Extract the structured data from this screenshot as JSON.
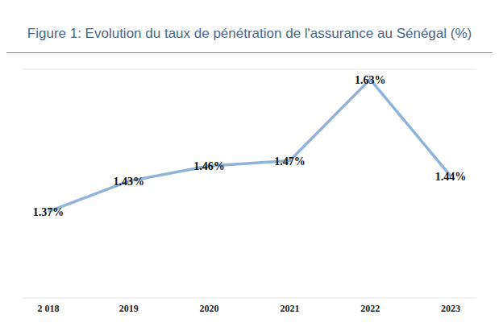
{
  "chart_data": {
    "type": "line",
    "title": "Figure 1: Evolution du taux de pénétration de l'assurance au Sénégal (%)",
    "categories": [
      "2 018",
      "2019",
      "2020",
      "2021",
      "2022",
      "2023"
    ],
    "values": [
      1.37,
      1.43,
      1.46,
      1.47,
      1.63,
      1.44
    ],
    "value_labels": [
      "1.37%",
      "1.43%",
      "1.46%",
      "1.47%",
      "1.63%",
      "1.44%"
    ],
    "color": "#8fb3d9",
    "ylim": [
      1.2,
      1.65
    ],
    "yticks": [
      1.2,
      1.25,
      1.3,
      1.35,
      1.4,
      1.45,
      1.5,
      1.55,
      1.6,
      1.65
    ],
    "grid": true,
    "data_labels": true,
    "tick_labels": "x",
    "marker": "none"
  }
}
